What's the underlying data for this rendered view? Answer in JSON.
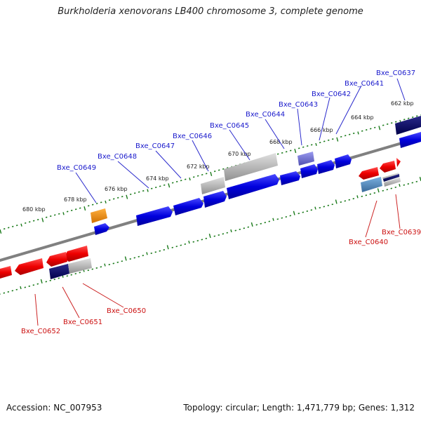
{
  "title": "Burkholderia xenovorans LB400 chromosome 3, complete genome",
  "footer": {
    "accession": "Accession: NC_007953",
    "summary": "Topology: circular; Length: 1,471,779 bp; Genes: 1,312"
  },
  "scale": {
    "tick_labels": [
      "662 kbp",
      "664 kbp",
      "666 kbp",
      "668 kbp",
      "670 kbp",
      "672 kbp",
      "674 kbp",
      "676 kbp",
      "678 kbp",
      "680 kbp"
    ]
  },
  "genes_forward": [
    "Bxe_C0637",
    "Bxe_C0641",
    "Bxe_C0642",
    "Bxe_C0643",
    "Bxe_C0644",
    "Bxe_C0645",
    "Bxe_C0646",
    "Bxe_C0647",
    "Bxe_C0648",
    "Bxe_C0649"
  ],
  "genes_reverse": [
    "Bxe_C0639",
    "Bxe_C0640",
    "Bxe_C0650",
    "Bxe_C0651",
    "Bxe_C0652"
  ],
  "colors": {
    "forward_label": "#1a1acc",
    "reverse_label": "#cc1111",
    "tick": "#1a7a1a",
    "backbone": "#808080"
  }
}
